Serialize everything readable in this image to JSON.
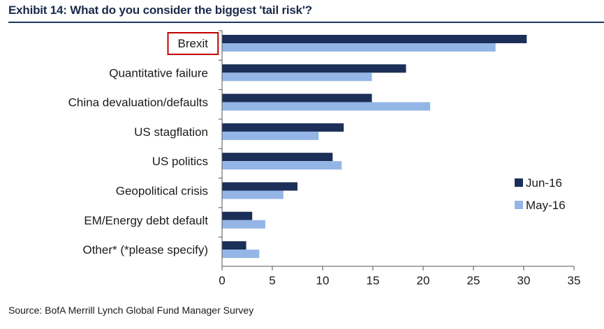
{
  "header": {
    "title": "Exhibit 14: What do you consider the biggest 'tail risk'?"
  },
  "footer": {
    "source": "Source: BofA Merrill Lynch Global Fund Manager Survey"
  },
  "colors": {
    "series_dark": "#1c2f58",
    "series_light": "#94b6e6",
    "highlight_box": "#c00000",
    "axis": "#555555"
  },
  "chart_data": {
    "type": "bar",
    "orientation": "horizontal",
    "title": "What do you consider the biggest 'tail risk'?",
    "categories": [
      "Brexit",
      "Quantitative failure",
      "China devaluation/defaults",
      "US stagflation",
      "US politics",
      "Geopolitical crisis",
      "EM/Energy debt default",
      "Other* (*please specify)"
    ],
    "highlighted_category": "Brexit",
    "series": [
      {
        "name": "Jun-16",
        "color": "#1c2f58",
        "values": [
          30.3,
          18.3,
          14.9,
          12.1,
          11.0,
          7.5,
          3.0,
          2.4
        ]
      },
      {
        "name": "May-16",
        "color": "#94b6e6",
        "values": [
          27.2,
          14.9,
          20.7,
          9.6,
          11.9,
          6.1,
          4.3,
          3.7
        ]
      }
    ],
    "xlim": [
      0,
      35
    ],
    "xticks": [
      0,
      5,
      10,
      15,
      20,
      25,
      30,
      35
    ],
    "xlabel": "",
    "ylabel": "",
    "legend_position": "right",
    "grid": false
  }
}
